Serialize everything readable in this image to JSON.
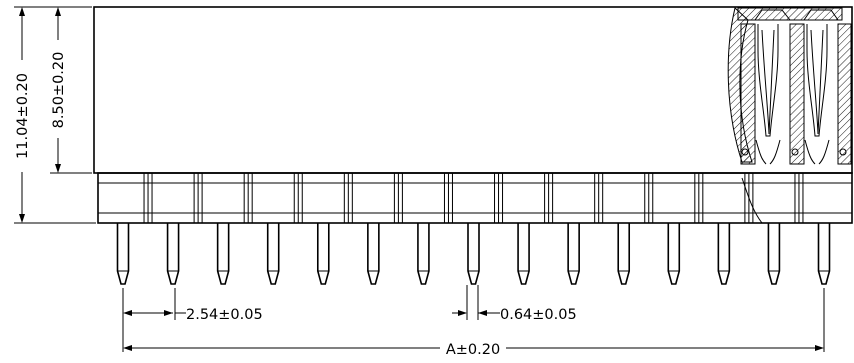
{
  "dimensions": {
    "total_height": "11.04±0.20",
    "body_height": "8.50±0.20",
    "pitch": "2.54±0.05",
    "pin_width": "0.64±0.05",
    "overall_length": "A±0.20"
  },
  "drawing": {
    "pin_count": 15,
    "line_color": "#000000",
    "hatch_color": "#000000"
  }
}
